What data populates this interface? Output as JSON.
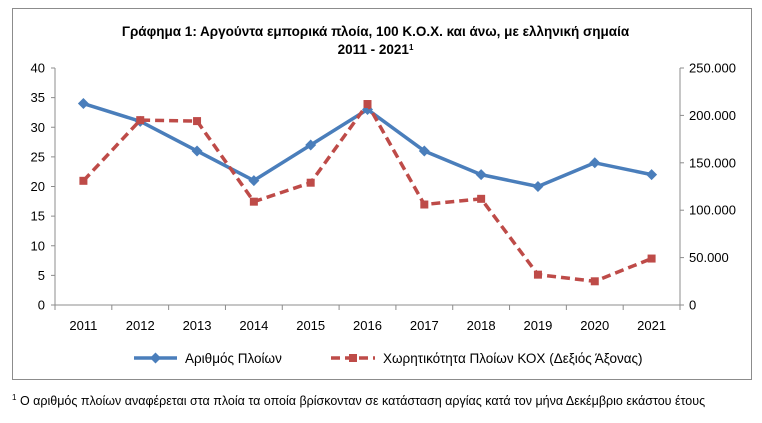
{
  "chart_data": {
    "type": "line",
    "title": "Γράφημα 1: Αργούντα  εμπορικά πλοία, 100 Κ.Ο.Χ. και άνω, με ελληνική σημαία",
    "subtitle": "2011 - 2021",
    "subtitle_note_marker": "1",
    "categories": [
      "2011",
      "2012",
      "2013",
      "2014",
      "2015",
      "2016",
      "2017",
      "2018",
      "2019",
      "2020",
      "2021"
    ],
    "series": [
      {
        "name": "Αριθμός  Πλοίων",
        "axis": "left",
        "color": "#4a7ebb",
        "marker": "diamond",
        "line_style": "solid",
        "values": [
          34,
          31,
          26,
          21,
          27,
          33,
          26,
          22,
          20,
          24,
          22
        ]
      },
      {
        "name": "Χωρητικότητα Πλοίων ΚΟΧ (Δεξιός Άξονας)",
        "axis": "right",
        "color": "#be4b48",
        "marker": "square",
        "line_style": "dashed",
        "values": [
          131000,
          195000,
          194000,
          109000,
          129000,
          212000,
          106000,
          112000,
          32000,
          25000,
          49000
        ]
      }
    ],
    "y_left": {
      "min": 0,
      "max": 40,
      "step": 5,
      "ticks": [
        "0",
        "5",
        "10",
        "15",
        "20",
        "25",
        "30",
        "35",
        "40"
      ]
    },
    "y_right": {
      "min": 0,
      "max": 250000,
      "step": 50000,
      "ticks": [
        "0",
        "50.000",
        "100.000",
        "150.000",
        "200.000",
        "250.000"
      ]
    },
    "grid": false,
    "legend_position": "bottom"
  },
  "footnote": {
    "marker": "1",
    "text": "Ο αριθμός πλοίων αναφέρεται στα πλοία τα οποία βρίσκονταν σε κατάσταση αργίας κατά τον μήνα Δεκέμβριο εκάστου έτους"
  }
}
